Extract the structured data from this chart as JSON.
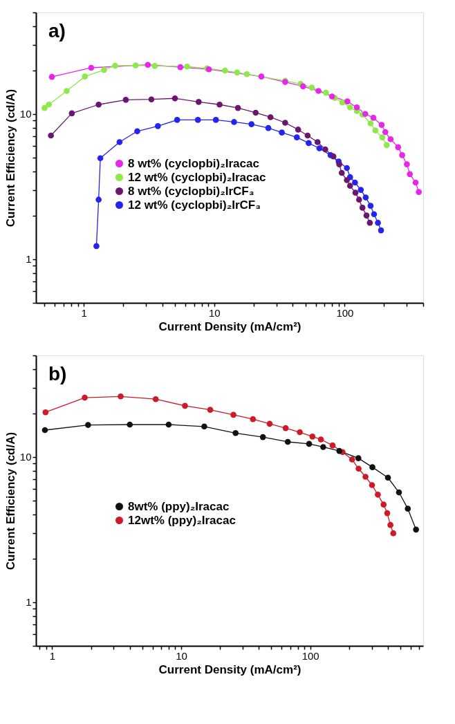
{
  "chart_data": [
    {
      "type": "line",
      "annotations": [
        "a)"
      ],
      "xlabel": "Current Density (mA/cm²)",
      "ylabel": "Current Efficiency (cd/A)",
      "log": "xy",
      "xlim": [
        0.43,
        400
      ],
      "ylim": [
        0.5,
        50
      ],
      "legend": "left",
      "marker": "circle",
      "line_style": "solid",
      "xticks": [
        {
          "value": 0.5,
          "label": null
        },
        {
          "value": 0.6,
          "label": null
        },
        {
          "value": 0.7,
          "label": null
        },
        {
          "value": 0.8,
          "label": null
        },
        {
          "value": 0.9,
          "label": null
        },
        1,
        {
          "value": 2,
          "label": null
        },
        {
          "value": 3,
          "label": null
        },
        {
          "value": 4,
          "label": null
        },
        {
          "value": 5,
          "label": null
        },
        {
          "value": 6,
          "label": null
        },
        {
          "value": 7,
          "label": null
        },
        {
          "value": 8,
          "label": null
        },
        {
          "value": 9,
          "label": null
        },
        10,
        {
          "value": 20,
          "label": null
        },
        {
          "value": 30,
          "label": null
        },
        {
          "value": 40,
          "label": null
        },
        {
          "value": 50,
          "label": null
        },
        {
          "value": 60,
          "label": null
        },
        {
          "value": 70,
          "label": null
        },
        {
          "value": 80,
          "label": null
        },
        {
          "value": 90,
          "label": null
        },
        100,
        {
          "value": 200,
          "label": null
        },
        {
          "value": 300,
          "label": null
        },
        {
          "value": 400,
          "label": null
        }
      ],
      "yticks": [
        {
          "value": 0.5,
          "label": null
        },
        {
          "value": 0.6,
          "label": null
        },
        {
          "value": 0.7,
          "label": null
        },
        {
          "value": 0.8,
          "label": null
        },
        {
          "value": 0.9,
          "label": null
        },
        1,
        {
          "value": 2,
          "label": null
        },
        {
          "value": 3,
          "label": null
        },
        {
          "value": 4,
          "label": null
        },
        {
          "value": 5,
          "label": null
        },
        {
          "value": 6,
          "label": null
        },
        {
          "value": 7,
          "label": null
        },
        {
          "value": 8,
          "label": null
        },
        {
          "value": 9,
          "label": null
        },
        10,
        {
          "value": 20,
          "label": null
        },
        {
          "value": 30,
          "label": null
        },
        {
          "value": 40,
          "label": null
        },
        {
          "value": 50,
          "label": null
        }
      ],
      "series": [
        {
          "name": "8 wt% (cyclopbi)₂Iracac",
          "color": "#e826e8",
          "x": [
            0.57,
            1.14,
            3.1,
            5.5,
            9.1,
            23,
            35,
            48,
            63,
            80,
            105,
            124,
            144,
            166,
            192,
            205,
            225,
            257,
            276,
            300,
            316,
            350,
            370
          ],
          "values": [
            18.0,
            20.8,
            21.8,
            21.0,
            20.3,
            18.1,
            16.6,
            15.5,
            14.4,
            13.2,
            12.2,
            11.1,
            10.0,
            9.4,
            8.4,
            7.5,
            6.7,
            5.9,
            5.2,
            4.5,
            3.85,
            3.37,
            2.9
          ]
        },
        {
          "name": "12 wt% (cyclopbi)₂Iracac",
          "color": "#8ee84a",
          "x": [
            0.5,
            0.54,
            0.74,
            1.02,
            1.43,
            1.74,
            2.5,
            3.5,
            6.2,
            8.8,
            12.1,
            15,
            17.8,
            35,
            46,
            56,
            72,
            84,
            96,
            110,
            124,
            137,
            158,
            172,
            194,
            210
          ],
          "values": [
            11.0,
            11.6,
            14.4,
            18.1,
            20.1,
            21.5,
            21.6,
            21.4,
            21.2,
            20.6,
            19.9,
            19.3,
            18.8,
            16.9,
            16.1,
            15.2,
            14.0,
            12.9,
            12.0,
            11.1,
            10.5,
            9.9,
            8.6,
            7.7,
            6.9,
            6.1
          ]
        },
        {
          "name": "8 wt% (cyclopbi)₂IrCF₃",
          "color": "#6a1670",
          "x": [
            0.56,
            0.81,
            1.3,
            2.1,
            3.3,
            5.0,
            7.6,
            11.0,
            15.2,
            20.8,
            27,
            35,
            44,
            52,
            62,
            71,
            82,
            91,
            95,
            104,
            110,
            121,
            129,
            137,
            147,
            156
          ],
          "values": [
            7.1,
            10.1,
            11.6,
            12.5,
            12.6,
            12.8,
            12.1,
            11.6,
            11.0,
            10.2,
            9.5,
            8.7,
            7.8,
            7.1,
            6.4,
            5.7,
            5.1,
            4.5,
            3.93,
            3.5,
            3.2,
            2.87,
            2.57,
            2.26,
            2.0,
            1.78
          ]
        },
        {
          "name": "12 wt% (cyclopbi)₂IrCF₃",
          "color": "#2424ee",
          "x": [
            1.25,
            1.3,
            1.34,
            1.88,
            2.57,
            3.7,
            5.2,
            7.5,
            10.3,
            14.2,
            19.3,
            26,
            33,
            43,
            53,
            64,
            78,
            90,
            104,
            110,
            120,
            133,
            145,
            158,
            168,
            180,
            190
          ],
          "values": [
            1.23,
            2.57,
            4.96,
            6.4,
            7.6,
            8.25,
            9.1,
            9.1,
            9.1,
            8.8,
            8.5,
            8.0,
            7.45,
            6.9,
            6.3,
            5.8,
            5.2,
            4.7,
            4.24,
            3.67,
            3.37,
            3.0,
            2.66,
            2.33,
            2.04,
            1.78,
            1.58
          ]
        }
      ]
    },
    {
      "type": "line",
      "annotations": [
        "b)"
      ],
      "xlabel": "Current Density (mA/cm²)",
      "ylabel": "Current Efficiency (cd/A)",
      "log": "xy",
      "xlim": [
        0.75,
        750
      ],
      "ylim": [
        0.5,
        50
      ],
      "legend": "left",
      "marker": "circle",
      "line_style": "solid",
      "xticks": [
        {
          "value": 0.8,
          "label": null
        },
        {
          "value": 0.9,
          "label": null
        },
        1,
        {
          "value": 2,
          "label": null
        },
        {
          "value": 3,
          "label": null
        },
        {
          "value": 4,
          "label": null
        },
        {
          "value": 5,
          "label": null
        },
        {
          "value": 6,
          "label": null
        },
        {
          "value": 7,
          "label": null
        },
        {
          "value": 8,
          "label": null
        },
        {
          "value": 9,
          "label": null
        },
        10,
        {
          "value": 20,
          "label": null
        },
        {
          "value": 30,
          "label": null
        },
        {
          "value": 40,
          "label": null
        },
        {
          "value": 50,
          "label": null
        },
        {
          "value": 60,
          "label": null
        },
        {
          "value": 70,
          "label": null
        },
        {
          "value": 80,
          "label": null
        },
        {
          "value": 90,
          "label": null
        },
        100,
        {
          "value": 200,
          "label": null
        },
        {
          "value": 300,
          "label": null
        },
        {
          "value": 400,
          "label": null
        },
        {
          "value": 500,
          "label": null
        },
        {
          "value": 600,
          "label": null
        },
        {
          "value": 700,
          "label": null
        }
      ],
      "yticks": [
        {
          "value": 0.5,
          "label": null
        },
        {
          "value": 0.6,
          "label": null
        },
        {
          "value": 0.7,
          "label": null
        },
        {
          "value": 0.8,
          "label": null
        },
        {
          "value": 0.9,
          "label": null
        },
        1,
        {
          "value": 2,
          "label": null
        },
        {
          "value": 3,
          "label": null
        },
        {
          "value": 4,
          "label": null
        },
        {
          "value": 5,
          "label": null
        },
        {
          "value": 6,
          "label": null
        },
        {
          "value": 7,
          "label": null
        },
        {
          "value": 8,
          "label": null
        },
        {
          "value": 9,
          "label": null
        },
        10,
        {
          "value": 20,
          "label": null
        },
        {
          "value": 30,
          "label": null
        },
        {
          "value": 40,
          "label": null
        },
        {
          "value": 50,
          "label": null
        }
      ],
      "series": [
        {
          "name": "8wt% (ppy)₂Iracac",
          "color": "#111111",
          "x": [
            0.88,
            1.9,
            4.0,
            8.0,
            15.1,
            26.4,
            43,
            67,
            98,
            126,
            168,
            236,
            303,
            400,
            487,
            570,
            660
          ],
          "values": [
            15.3,
            16.6,
            16.7,
            16.7,
            16.2,
            14.6,
            13.7,
            12.7,
            12.3,
            11.7,
            11.0,
            9.8,
            8.5,
            7.2,
            5.7,
            4.4,
            3.16
          ]
        },
        {
          "name": "12wt% (ppy)₂Iracac",
          "color": "#cc1a26",
          "x": [
            0.89,
            1.79,
            3.4,
            6.35,
            10.7,
            16.8,
            25.4,
            36,
            48.5,
            64.5,
            83,
            104,
            121,
            149,
            178,
            211,
            237,
            268,
            301,
            334,
            370,
            395,
            418,
            440
          ],
          "values": [
            20.3,
            25.6,
            26.1,
            25.0,
            22.5,
            21.1,
            19.5,
            18.2,
            16.9,
            15.8,
            14.8,
            13.8,
            13.2,
            12.0,
            10.8,
            9.6,
            8.3,
            7.3,
            6.4,
            5.5,
            4.7,
            4.1,
            3.4,
            2.98
          ]
        }
      ]
    }
  ]
}
